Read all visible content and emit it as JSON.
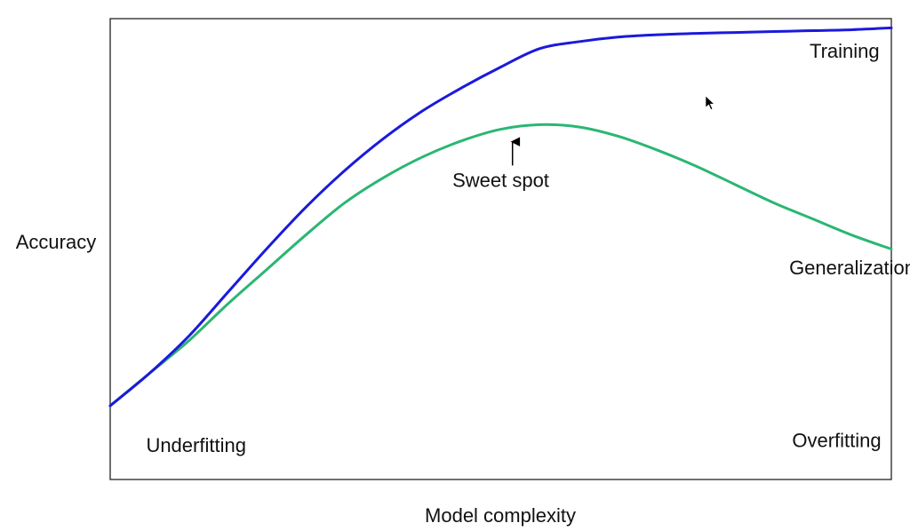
{
  "chart_data": {
    "type": "line",
    "title": "",
    "xlabel": "Model complexity",
    "ylabel": "Accuracy",
    "xlim": [
      0,
      1
    ],
    "ylim": [
      0,
      1
    ],
    "grid": false,
    "series": [
      {
        "name": "Training",
        "color": "#1a1adb",
        "x": [
          0.0,
          0.05,
          0.1,
          0.15,
          0.2,
          0.25,
          0.3,
          0.35,
          0.4,
          0.45,
          0.5,
          0.55,
          0.6,
          0.65,
          0.7,
          0.75,
          0.8,
          0.85,
          0.9,
          0.95,
          1.0
        ],
        "y": [
          0.16,
          0.23,
          0.31,
          0.405,
          0.5,
          0.59,
          0.67,
          0.74,
          0.8,
          0.85,
          0.895,
          0.935,
          0.95,
          0.96,
          0.965,
          0.968,
          0.97,
          0.972,
          0.974,
          0.976,
          0.98
        ]
      },
      {
        "name": "Generalization",
        "color": "#2bb673",
        "x": [
          0.0,
          0.05,
          0.1,
          0.15,
          0.2,
          0.25,
          0.3,
          0.35,
          0.4,
          0.45,
          0.5,
          0.55,
          0.6,
          0.65,
          0.7,
          0.75,
          0.8,
          0.85,
          0.9,
          0.95,
          1.0
        ],
        "y": [
          0.16,
          0.23,
          0.3,
          0.38,
          0.455,
          0.53,
          0.6,
          0.655,
          0.7,
          0.735,
          0.76,
          0.77,
          0.765,
          0.745,
          0.715,
          0.68,
          0.64,
          0.6,
          0.565,
          0.53,
          0.5
        ]
      }
    ],
    "annotations": [
      {
        "text": "Training",
        "x": 0.94,
        "y": 0.915
      },
      {
        "text": "Generalization",
        "x": 0.95,
        "y": 0.445
      },
      {
        "text": "Sweet spot",
        "x": 0.5,
        "y": 0.635,
        "arrow_to": [
          0.515,
          0.76
        ]
      },
      {
        "text": "Underfitting",
        "x": 0.11,
        "y": 0.06
      },
      {
        "text": "Overfitting",
        "x": 0.93,
        "y": 0.07
      }
    ]
  }
}
